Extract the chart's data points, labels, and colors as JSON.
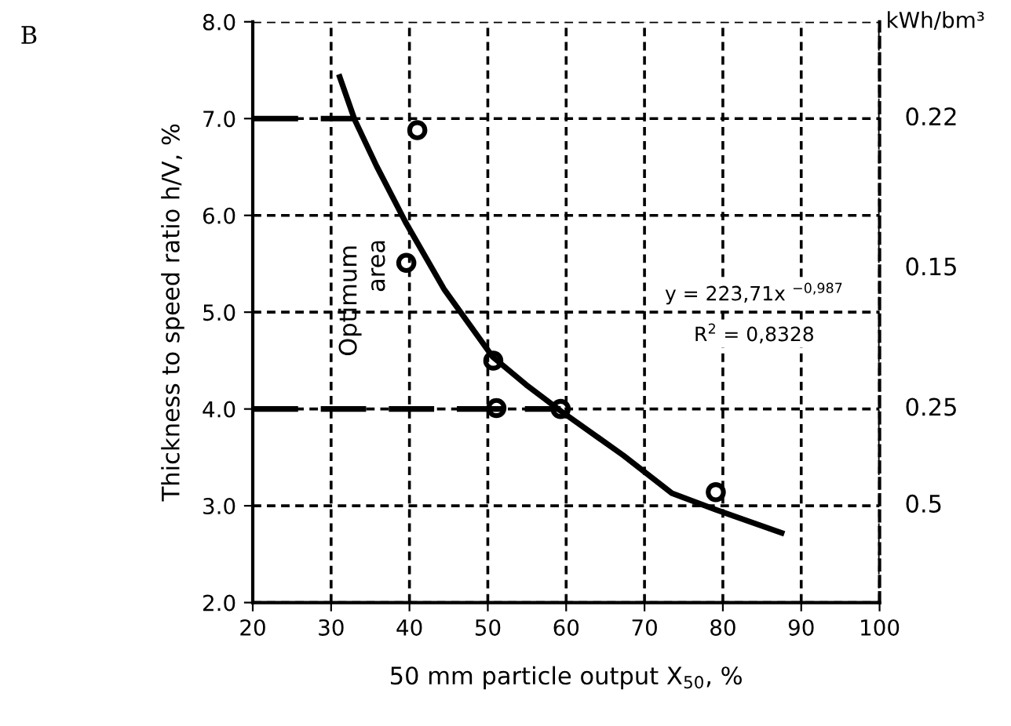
{
  "chart_data": {
    "type": "scatter",
    "xlabel": "50 mm particle output X$_{50}$, %",
    "ylabel": "Thickness to speed ratio h/V, %",
    "xlim": [
      20,
      100
    ],
    "xticks": [
      20,
      30,
      40,
      50,
      60,
      70,
      80,
      90,
      100
    ],
    "ylim": [
      2,
      8
    ],
    "yticks": [
      {
        "value": 2,
        "label": "2.0"
      },
      {
        "value": 3,
        "label": "3.0"
      },
      {
        "value": 4,
        "label": "4.0"
      },
      {
        "value": 5,
        "label": "5.0"
      },
      {
        "value": 6,
        "label": "6.0"
      },
      {
        "value": 7,
        "label": "7.0"
      },
      {
        "value": 8,
        "label": "8.0"
      }
    ],
    "grid": true,
    "marker": "circle",
    "series": [
      {
        "color": "#000000",
        "x": [
          41.0,
          39.6,
          50.7,
          51.1,
          59.3,
          79.1
        ],
        "values": [
          6.88,
          5.51,
          4.5,
          4.01,
          4.0,
          3.14
        ]
      },
      {
        "type": "line",
        "color": "#000000",
        "line_style": "solid",
        "marker": "none",
        "x": [
          31.1,
          33.0,
          35.8,
          39.5,
          44.4,
          50.6,
          54.9,
          59.3,
          67.3,
          73.5,
          79.1,
          87.5
        ],
        "values": [
          7.43,
          6.99,
          6.51,
          5.93,
          5.24,
          4.54,
          4.25,
          3.98,
          3.52,
          3.13,
          2.96,
          2.72
        ]
      },
      {
        "type": "line",
        "color": "#000000",
        "line_style": "dashed",
        "marker": "none",
        "x": [
          20,
          33.0
        ],
        "values": [
          7,
          7
        ]
      },
      {
        "type": "line",
        "color": "#000000",
        "line_style": "dashed",
        "marker": "none",
        "x": [
          20,
          59.3
        ],
        "values": [
          4,
          4
        ]
      }
    ],
    "annotations": [
      "B",
      "Optimum",
      "area",
      "y = 223,71x $^{−0,987}$",
      "R$^{2}$ = 0,8328",
      "kWh/bm³",
      "0.22",
      "0.15",
      "0.25",
      "0.5"
    ]
  }
}
